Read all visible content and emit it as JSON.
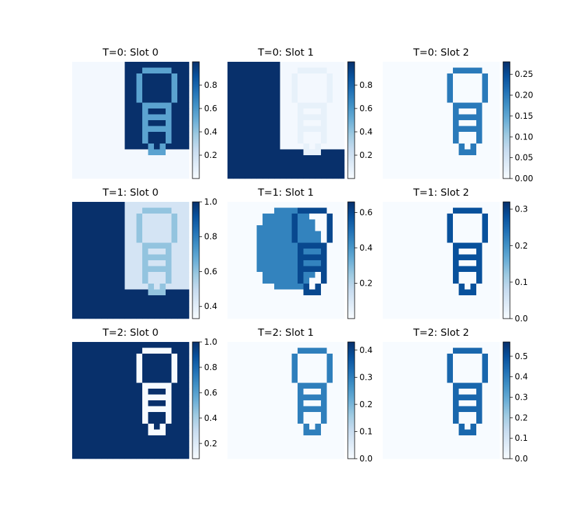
{
  "chart_data": [
    {
      "type": "heatmap",
      "title": "T=0: Slot 0",
      "colormap": "Blues",
      "vmin": 0.0,
      "vmax": 1.0,
      "colorbar_ticks": [
        "0.2",
        "0.4",
        "0.6",
        "0.8"
      ],
      "background": 0.02,
      "mask": "right_blob",
      "mask_value": 1.0,
      "outline_value": 0.55
    },
    {
      "type": "heatmap",
      "title": "T=0: Slot 1",
      "colormap": "Blues",
      "vmin": 0.0,
      "vmax": 1.0,
      "colorbar_ticks": [
        "0.2",
        "0.4",
        "0.6",
        "0.8"
      ],
      "background": 1.0,
      "mask": "right_blob",
      "mask_value": 0.02,
      "outline_value": 0.08
    },
    {
      "type": "heatmap",
      "title": "T=0: Slot 2",
      "colormap": "Blues",
      "vmin": 0.0,
      "vmax": 0.28,
      "colorbar_ticks": [
        "0.00",
        "0.05",
        "0.10",
        "0.15",
        "0.20",
        "0.25"
      ],
      "background": 0.0,
      "mask": "none",
      "mask_value": 0.0,
      "outline_value": 0.2
    },
    {
      "type": "heatmap",
      "title": "T=1: Slot 0",
      "colormap": "Blues",
      "vmin": 0.33,
      "vmax": 1.0,
      "colorbar_ticks": [
        "0.4",
        "0.6",
        "0.8",
        "1.0"
      ],
      "background": 1.0,
      "mask": "right_blob",
      "mask_value": 0.45,
      "outline_value": 0.6
    },
    {
      "type": "heatmap",
      "title": "T=1: Slot 1",
      "colormap": "Blues",
      "vmin": 0.0,
      "vmax": 0.66,
      "colorbar_ticks": [
        "0.2",
        "0.4",
        "0.6"
      ],
      "background": 0.0,
      "mask": "center_blob",
      "mask_value": 0.45,
      "outline_value": 0.6
    },
    {
      "type": "heatmap",
      "title": "T=1: Slot 2",
      "colormap": "Blues",
      "vmin": 0.0,
      "vmax": 0.32,
      "colorbar_ticks": [
        "0.0",
        "0.1",
        "0.2",
        "0.3"
      ],
      "background": 0.0,
      "mask": "none",
      "mask_value": 0.0,
      "outline_value": 0.28
    },
    {
      "type": "heatmap",
      "title": "T=2: Slot 0",
      "colormap": "Blues",
      "vmin": 0.08,
      "vmax": 1.0,
      "colorbar_ticks": [
        "0.2",
        "0.4",
        "0.6",
        "0.8",
        "1.0"
      ],
      "background": 1.0,
      "mask": "none",
      "mask_value": 1.0,
      "outline_value": 0.08
    },
    {
      "type": "heatmap",
      "title": "T=2: Slot 1",
      "colormap": "Blues",
      "vmin": 0.0,
      "vmax": 0.43,
      "colorbar_ticks": [
        "0.0",
        "0.1",
        "0.2",
        "0.3",
        "0.4"
      ],
      "background": 0.0,
      "mask": "none",
      "mask_value": 0.0,
      "outline_value": 0.3
    },
    {
      "type": "heatmap",
      "title": "T=2: Slot 2",
      "colormap": "Blues",
      "vmin": 0.0,
      "vmax": 0.57,
      "colorbar_ticks": [
        "0.0",
        "0.1",
        "0.2",
        "0.3",
        "0.4",
        "0.5"
      ],
      "background": 0.0,
      "mask": "none",
      "mask_value": 0.0,
      "outline_value": 0.45
    }
  ]
}
